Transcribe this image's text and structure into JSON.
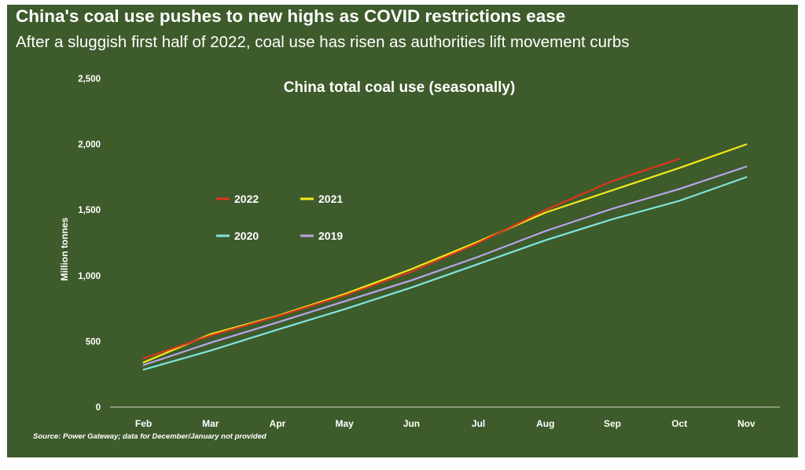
{
  "header": {
    "title": "China's coal use pushes to new highs as COVID restrictions ease",
    "subtitle": "After a sluggish first half of 2022, coal use has risen as authorities lift movement curbs"
  },
  "footer": {
    "source": "Source: Power Gateway; data for December/January not provided"
  },
  "colors": {
    "background": "#3e5b2b",
    "text": "#ffffff",
    "axis": "#c9d1bf"
  },
  "chart_data": {
    "type": "line",
    "title": "China total coal use (seasonally)",
    "xlabel": "",
    "ylabel": "Million tonnes",
    "categories": [
      "Feb",
      "Mar",
      "Apr",
      "May",
      "Jun",
      "Jul",
      "Aug",
      "Sep",
      "Oct",
      "Nov"
    ],
    "ylim": [
      0,
      2500
    ],
    "yticks": [
      0,
      500,
      1000,
      1500,
      2000,
      2500
    ],
    "ytick_labels": [
      "0",
      "500",
      "1,000",
      "1,500",
      "2,000",
      "2,500"
    ],
    "grid": false,
    "legend": "inside-top-left",
    "series": [
      {
        "name": "2022",
        "color": "#e0341c",
        "values": [
          370,
          545,
          690,
          850,
          1030,
          1250,
          1500,
          1720,
          1890,
          null
        ]
      },
      {
        "name": "2021",
        "color": "#f2ea18",
        "values": [
          340,
          555,
          695,
          860,
          1050,
          1260,
          1480,
          1650,
          1820,
          2000
        ]
      },
      {
        "name": "2020",
        "color": "#7fe5df",
        "values": [
          285,
          430,
          590,
          745,
          910,
          1090,
          1270,
          1430,
          1570,
          1750
        ]
      },
      {
        "name": "2019",
        "color": "#b6a6ea",
        "values": [
          320,
          490,
          645,
          805,
          965,
          1145,
          1340,
          1510,
          1660,
          1830
        ]
      }
    ]
  }
}
